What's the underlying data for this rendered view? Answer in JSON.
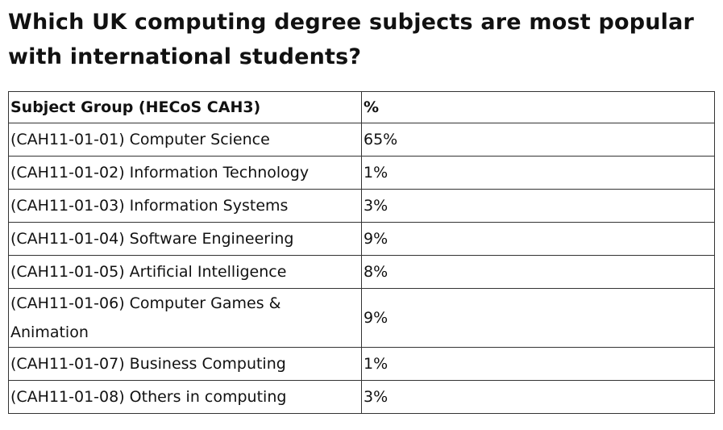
{
  "header": {
    "title": "Which UK computing degree subjects are most popular with international students?"
  },
  "table": {
    "columns": [
      "Subject Group (HECoS CAH3)",
      "%"
    ],
    "rows": [
      [
        "(CAH11-01-01) Computer Science",
        "65%"
      ],
      [
        "(CAH11-01-02) Information Technology",
        "1%"
      ],
      [
        "(CAH11-01-03) Information Systems",
        "3%"
      ],
      [
        "(CAH11-01-04) Software Engineering",
        "9%"
      ],
      [
        "(CAH11-01-05) Artificial Intelligence",
        "8%"
      ],
      [
        "(CAH11-01-06) Computer Games & Animation",
        "9%"
      ],
      [
        "(CAH11-01-07) Business Computing",
        "1%"
      ],
      [
        "(CAH11-01-08) Others in computing",
        "3%"
      ]
    ]
  }
}
